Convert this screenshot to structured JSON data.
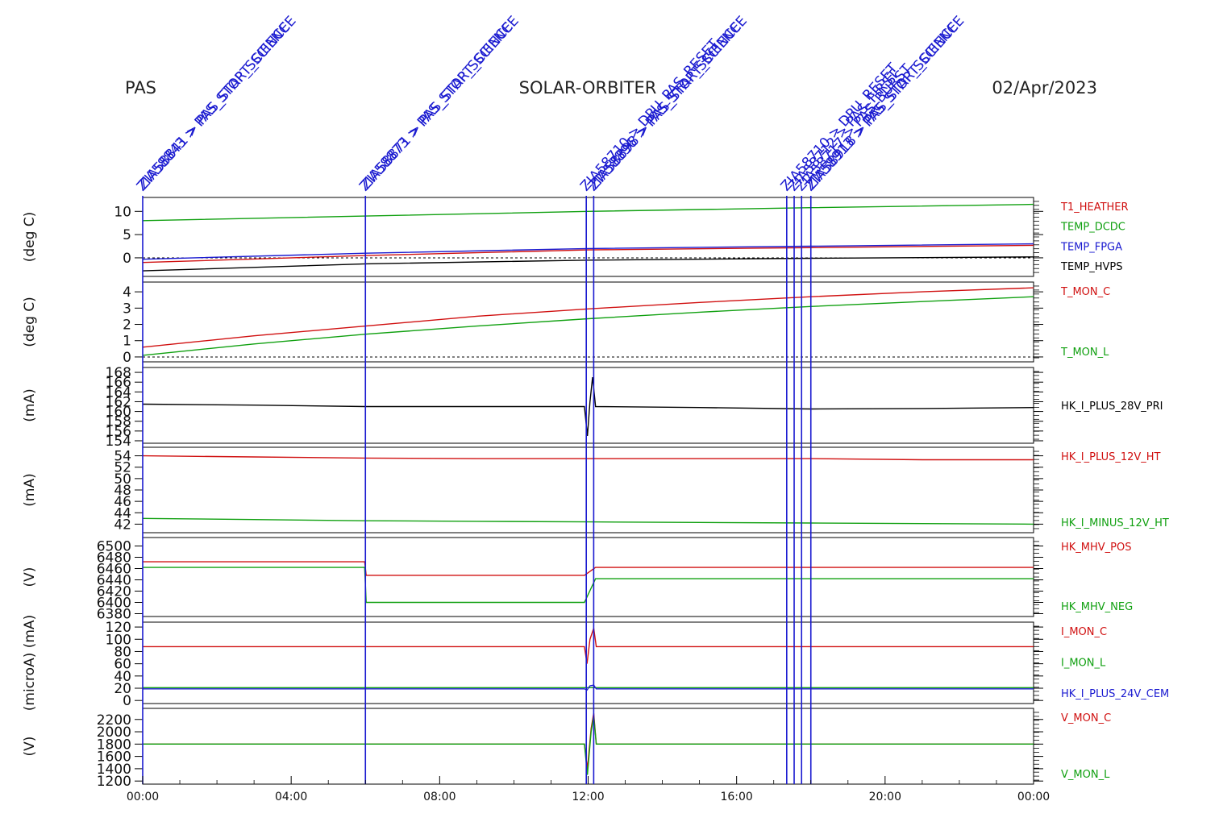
{
  "header": {
    "left": "PAS",
    "center": "SOLAR-ORBITER",
    "right": "02/Apr/2023"
  },
  "colors": {
    "red": "#d01010",
    "green": "#10a010",
    "blue": "#1a1ad0",
    "black": "#000000",
    "event": "#1a1ad0"
  },
  "events": [
    {
      "t": 0.0,
      "labels": [
        "ZIA58843 > PAS_STOP_SCIENCE",
        "ZIA58841 > PAS_START_SCIENCE"
      ]
    },
    {
      "t": 6.0,
      "labels": [
        "ZIA58873 > PAS_STOP_SCIENCE",
        "ZIA58871 > PAS_START_SCIENCE"
      ]
    },
    {
      "t": 11.95,
      "labels": [
        "ZIA58710 > DPU_PAS_RESET"
      ]
    },
    {
      "t": 12.15,
      "labels": [
        "ZIA58896 > PAS_STOP_SCIENCE",
        "ZIA58898 > PAS_START_SCIENCE"
      ]
    },
    {
      "t": 17.35,
      "labels": [
        "ZIA58710 > DPU_RESET"
      ]
    },
    {
      "t": 17.55,
      "labels": [
        "ZIA58712 > PAS_FIRST"
      ]
    },
    {
      "t": 17.75,
      "labels": [
        "ZIA58717 > PAS_BURST"
      ]
    },
    {
      "t": 18.0,
      "labels": [
        "ZIA58913 > PAS_STOP_SCIENCE",
        "ZIA58918 > PAS_START_SCIENCE"
      ]
    }
  ],
  "x_ticks": [
    "00:00",
    "04:00",
    "08:00",
    "12:00",
    "16:00",
    "20:00",
    "00:00"
  ],
  "chart_data": [
    {
      "type": "line",
      "ylabel": "(deg C)",
      "ylim": [
        -4,
        13
      ],
      "yticks": [
        0,
        5,
        10
      ],
      "zero_line": true,
      "x": [
        0,
        6,
        12,
        18,
        24
      ],
      "series": [
        {
          "name": "T1_HEATHER",
          "color": "red",
          "values": [
            -1.0,
            0.5,
            1.7,
            2.2,
            2.7
          ]
        },
        {
          "name": "TEMP_DCDC",
          "color": "green",
          "values": [
            8.0,
            9.0,
            10.0,
            10.8,
            11.5
          ]
        },
        {
          "name": "TEMP_FPGA",
          "color": "blue",
          "values": [
            -0.3,
            1.0,
            2.0,
            2.5,
            3.0
          ]
        },
        {
          "name": "TEMP_HVPS",
          "color": "black",
          "values": [
            -2.8,
            -1.3,
            -0.5,
            -0.1,
            0.2
          ]
        }
      ]
    },
    {
      "type": "line",
      "ylabel": "(deg C)",
      "ylim": [
        -0.3,
        4.6
      ],
      "yticks": [
        0,
        1,
        2,
        3,
        4
      ],
      "zero_line": true,
      "x": [
        0,
        3,
        6,
        9,
        12,
        15,
        18,
        21,
        24
      ],
      "series": [
        {
          "name": "T_MON_C",
          "color": "red",
          "values": [
            0.6,
            1.3,
            1.9,
            2.5,
            2.95,
            3.35,
            3.7,
            4.0,
            4.25
          ]
        },
        {
          "name": "T_MON_L",
          "color": "green",
          "values": [
            0.1,
            0.8,
            1.4,
            1.9,
            2.35,
            2.75,
            3.1,
            3.4,
            3.7
          ]
        }
      ]
    },
    {
      "type": "line",
      "ylabel": "(mA)",
      "ylim": [
        153.5,
        169
      ],
      "yticks": [
        154,
        156,
        158,
        160,
        162,
        164,
        166,
        168
      ],
      "x": [
        0,
        3,
        6,
        9,
        11.9,
        11.98,
        12.05,
        12.12,
        12.2,
        15,
        18,
        21,
        24
      ],
      "series": [
        {
          "name": "HK_I_PLUS_28V_PRI",
          "color": "black",
          "values": [
            161.5,
            161.3,
            161.0,
            161.0,
            161.0,
            155.0,
            162.0,
            167.0,
            161.0,
            160.8,
            160.5,
            160.6,
            160.8
          ]
        }
      ]
    },
    {
      "type": "line",
      "ylabel": "(mA)",
      "ylim": [
        40.5,
        55.5
      ],
      "yticks": [
        42,
        44,
        46,
        48,
        50,
        52,
        54
      ],
      "x": [
        0,
        3,
        6,
        9,
        12,
        15,
        18,
        21,
        24
      ],
      "series": [
        {
          "name": "HK_I_PLUS_12V_HT",
          "color": "red",
          "values": [
            54.0,
            53.8,
            53.6,
            53.5,
            53.5,
            53.5,
            53.5,
            53.3,
            53.3
          ]
        },
        {
          "name": "HK_I_MINUS_12V_HT",
          "color": "green",
          "values": [
            43.0,
            42.8,
            42.6,
            42.5,
            42.4,
            42.3,
            42.2,
            42.1,
            42.0
          ]
        }
      ]
    },
    {
      "type": "line",
      "ylabel": "(V)",
      "ylim": [
        6375,
        6515
      ],
      "yticks": [
        6380,
        6400,
        6420,
        6440,
        6460,
        6480,
        6500
      ],
      "x": [
        0,
        5.98,
        6.02,
        11.9,
        12.2,
        17.95,
        18.05,
        24
      ],
      "series": [
        {
          "name": "HK_MHV_POS",
          "color": "red",
          "values": [
            6472,
            6472,
            6448,
            6448,
            6462,
            6462,
            6462,
            6462
          ]
        },
        {
          "name": "HK_MHV_NEG",
          "color": "green",
          "values": [
            6462,
            6462,
            6400,
            6400,
            6442,
            6442,
            6442,
            6442
          ]
        }
      ]
    },
    {
      "type": "line",
      "ylabel": "(microA) (mA)",
      "ylim": [
        -5,
        128
      ],
      "yticks": [
        0,
        20,
        40,
        60,
        80,
        100,
        120
      ],
      "x": [
        0,
        6,
        11.9,
        11.97,
        12.05,
        12.15,
        12.22,
        18,
        24
      ],
      "series": [
        {
          "name": "I_MON_C",
          "color": "red",
          "values": [
            88,
            88,
            88,
            60,
            100,
            118,
            88,
            88,
            88
          ]
        },
        {
          "name": "I_MON_L",
          "color": "green",
          "values": [
            21,
            21,
            21,
            21,
            21,
            21,
            21,
            21,
            21
          ]
        },
        {
          "name": "HK_I_PLUS_24V_CEM",
          "color": "blue",
          "values": [
            19,
            19,
            19,
            17,
            24,
            25,
            19,
            19,
            19
          ]
        }
      ]
    },
    {
      "type": "line",
      "ylabel": "(V)",
      "ylim": [
        1150,
        2380
      ],
      "yticks": [
        1200,
        1400,
        1600,
        1800,
        2000,
        2200
      ],
      "x": [
        0,
        11.9,
        11.98,
        12.08,
        12.15,
        12.22,
        24
      ],
      "series": [
        {
          "name": "V_MON_C",
          "color": "red",
          "values": [
            1800,
            1800,
            1400,
            2050,
            2300,
            1800,
            1800
          ]
        },
        {
          "name": "V_MON_L",
          "color": "green",
          "values": [
            1800,
            1800,
            1300,
            2000,
            2250,
            1800,
            1800
          ]
        }
      ]
    }
  ]
}
